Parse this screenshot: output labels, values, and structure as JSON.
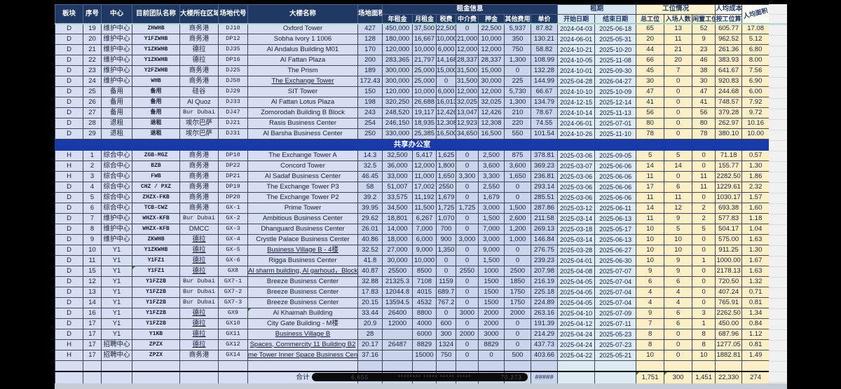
{
  "header": {
    "columns_merged": [
      "板块",
      "序号",
      "中心",
      "目前团队名称",
      "大楼所在区域",
      "场地代号",
      "大楼名称",
      "场地面积"
    ],
    "groups": [
      {
        "label": "租金信息",
        "span": 7
      },
      {
        "label": "租期",
        "span": 2
      },
      {
        "label": "工位情况",
        "span": 3
      },
      {
        "label": "人均成本",
        "span": 1
      }
    ],
    "sub_columns": [
      "年租金",
      "月租金",
      "税费",
      "中介费",
      "押金",
      "其他费用",
      "单价",
      "开始日期",
      "结束日期",
      "总工位",
      "入场人数",
      "闲置工位",
      "按工位算"
    ],
    "diag_column": "人均面积"
  },
  "separator_label": "共享办公室",
  "rows_d": [
    {
      "c": [
        "D",
        "19",
        "维护中心",
        "ZHWHB",
        "商务港",
        "DJ10",
        "Oxford Tower",
        "427",
        "450,000",
        "37,500",
        "22,500",
        "0",
        "22,500",
        "5,937",
        "87.82",
        "2024-04-03",
        "2025-06-18",
        "65",
        "13",
        "52",
        "605.77",
        "17.08"
      ]
    },
    {
      "c": [
        "D",
        "20",
        "维护中心",
        "Y1FZWHB",
        "商务港",
        "DP12",
        "Sobha Ivory 1 1006",
        "128",
        "180,000",
        "16,667",
        "10,000",
        "21,000",
        "10,000",
        "350",
        "130.21",
        "2024-06-01",
        "2025-05-31",
        "20",
        "11",
        "9",
        "962.52",
        "5.12"
      ]
    },
    {
      "c": [
        "D",
        "21",
        "维护中心",
        "Y1ZKWHB",
        "德拉",
        "DJ35",
        "Al Andalus Building M01",
        "170",
        "120,000",
        "10,000",
        "6,000",
        "12,000",
        "12,000",
        "750",
        "58.82",
        "2024-10-21",
        "2025-10-20",
        "44",
        "21",
        "23",
        "261.36",
        "6.80"
      ]
    },
    {
      "c": [
        "D",
        "22",
        "维护中心",
        "Y1ZKWHB",
        "德拉",
        "DP16",
        "Al Fattan Plaza",
        "200",
        "283,365",
        "21,797",
        "14,168",
        "28,337",
        "28,337",
        "1,300",
        "108.99",
        "2024-10-05",
        "2025-11-08",
        "66",
        "20",
        "46",
        "383.93",
        "8.00"
      ]
    },
    {
      "c": [
        "D",
        "23",
        "维护中心",
        "Y2FZWHB",
        "商务港",
        "DJ25",
        "The Prism",
        "189",
        "300,000",
        "25,000",
        "15,000",
        "31,500",
        "15,000",
        "0",
        "132.28",
        "2024-10-01",
        "2025-09-30",
        "45",
        "7",
        "38",
        "641.67",
        "7.56"
      ]
    },
    {
      "c": [
        "D",
        "24",
        "维护中心",
        "WHB",
        "商务港",
        "DJ50",
        "The Exchange Tower",
        "172.43",
        "300,000",
        "25,000",
        "0",
        "31,500",
        "30,000",
        "225",
        "144.99",
        "2025-04-28",
        "2026-04-27",
        "30",
        "0",
        "30",
        "920.83",
        "6.90"
      ],
      "u": [
        6
      ]
    },
    {
      "c": [
        "D",
        "25",
        "备用",
        "备用",
        "硅谷",
        "DJ29",
        "SIT Tower",
        "150",
        "120,000",
        "10,000",
        "6,000",
        "12,000",
        "12,000",
        "5,730",
        "66.67",
        "2024-10-10",
        "2025-10-09",
        "47",
        "0",
        "47",
        "244.68",
        "6.00"
      ]
    },
    {
      "c": [
        "D",
        "26",
        "备用",
        "备用",
        "Al Quoz",
        "DJ33",
        "Al Fattan Lotus Plaza",
        "198",
        "320,250",
        "26,688",
        "16,013",
        "32,025",
        "32,025",
        "1,300",
        "134.79",
        "2024-12-15",
        "2025-12-14",
        "41",
        "0",
        "41",
        "748.57",
        "7.92"
      ]
    },
    {
      "c": [
        "D",
        "27",
        "备用",
        "备用",
        "Bur Dubai",
        "DJ47",
        "Zomorodah Building B Block",
        "243",
        "248,520",
        "19,117",
        "12,426",
        "13,047",
        "12,426",
        "210",
        "78.67",
        "2024-10-14",
        "2025-11-13",
        "56",
        "0",
        "56",
        "379.28",
        "9.72"
      ]
    },
    {
      "c": [
        "D",
        "28",
        "退租",
        "退租",
        "埃尔巴萨",
        "DJ21",
        "Rasis Business Center",
        "254",
        "246,150",
        "18,935",
        "12,308",
        "12,923",
        "12,308",
        "220",
        "74.55",
        "2024-06-01",
        "2025-07-01",
        "80",
        "0",
        "80",
        "262.97",
        "10.16"
      ]
    },
    {
      "c": [
        "D",
        "29",
        "退租",
        "退租",
        "埃尔巴萨",
        "DJ31",
        "Al Barsha Business Center",
        "250",
        "330,000",
        "25,385",
        "16,500",
        "34,650",
        "16,500",
        "550",
        "101.54",
        "2024-10-26",
        "2025-11-10",
        "78",
        "0",
        "78",
        "380.10",
        "10.00"
      ]
    }
  ],
  "rows_h": [
    {
      "c": [
        "H",
        "1",
        "综合中心",
        "ZGB-MGZ",
        "商务港",
        "DP18",
        "The Exchange Tower A",
        "14.3",
        "32,500",
        "5,417",
        "1,625",
        "0",
        "2,500",
        "875",
        "378.81",
        "2025-03-06",
        "2025-09-05",
        "5",
        "5",
        "0",
        "71.18",
        "0.57"
      ]
    },
    {
      "c": [
        "H",
        "2",
        "综合中心",
        "BZB",
        "商务港",
        "DP22",
        "Concord Tower",
        "32.5",
        "36,000",
        "12,000",
        "1,800",
        "0",
        "3,600",
        "3,600",
        "369.23",
        "2025-03-07",
        "2025-06-06",
        "14",
        "14",
        "0",
        "155.77",
        "1.30"
      ]
    },
    {
      "c": [
        "H",
        "3",
        "综合中心",
        "FWB",
        "商务港",
        "DP21",
        "Al Sadaf Business Center",
        "46.45",
        "33,000",
        "11,000",
        "1,650",
        "3,300",
        "3,300",
        "1,650",
        "236.81",
        "2025-03-06",
        "2025-06-06",
        "11",
        "0",
        "11",
        "2282.50",
        "1.86"
      ]
    },
    {
      "c": [
        "D",
        "4",
        "综合中心",
        "CHZ / PXZ",
        "商务港",
        "DP19",
        "The Exchange Tower P3",
        "58",
        "51,007",
        "17,002",
        "2550",
        "0",
        "2,550",
        "0",
        "293.14",
        "2025-03-06",
        "2025-06-06",
        "17",
        "6",
        "11",
        "1229.61",
        "2.32"
      ]
    },
    {
      "c": [
        "D",
        "5",
        "综合中心",
        "ZHZX-FKB",
        "商务港",
        "DP20",
        "The Exchange Tower P2",
        "39.2",
        "33,575",
        "11,192",
        "1,679",
        "0",
        "1,679",
        "0",
        "285.51",
        "2025-03-06",
        "2025-06-06",
        "11",
        "11",
        "0",
        "1030.17",
        "1.57"
      ]
    },
    {
      "c": [
        "D",
        "6",
        "综合中心",
        "TCB-CWZ",
        "商务港",
        "GX-1",
        "Prime Tower",
        "39.95",
        "34,500",
        "11,500",
        "1,725",
        "1,725",
        "3,000",
        "1,500",
        "287.86",
        "2025-03-12",
        "2025-06-11",
        "14",
        "12",
        "2",
        "693.38",
        "1.60"
      ]
    },
    {
      "c": [
        "D",
        "7",
        "维护中心",
        "WHZX-KFB",
        "Bur Dubai",
        "GX-2",
        "Ambitious Business Center",
        "29.62",
        "18,801",
        "6,267",
        "1,070",
        "0",
        "1,500",
        "2,600",
        "211.58",
        "2025-03-14",
        "2025-06-13",
        "11",
        "9",
        "2",
        "577.83",
        "1.18"
      ]
    },
    {
      "c": [
        "D",
        "8",
        "维护中心",
        "WHZX-KFB",
        "DMCC",
        "GX-3",
        "Dhanguard Business Center",
        "26.01",
        "14,000",
        "7,000",
        "700",
        "0",
        "7,000",
        "1,200",
        "269.13",
        "2025-03-18",
        "2025-05-17",
        "10",
        "5",
        "5",
        "504.17",
        "1.04"
      ]
    },
    {
      "c": [
        "D",
        "9",
        "维护中心",
        "ZKWHB",
        "德拉",
        "GX-4",
        "Crystle Palace Business Center",
        "40.86",
        "18,000",
        "6,000",
        "900",
        "3,000",
        "3,000",
        "1,000",
        "146.84",
        "2025-03-14",
        "2025-06-13",
        "10",
        "10",
        "0",
        "575.00",
        "1.63"
      ],
      "u": [
        4
      ]
    },
    {
      "c": [
        "D",
        "10",
        "Y1",
        "Y1ZKWHB",
        "德拉",
        "GX-5",
        "Business Village B - 4楼",
        "32.52",
        "27,000",
        "9,000",
        "1,350",
        "0",
        "9,000",
        "0",
        "276.75",
        "2025-03-28",
        "2025-06-27",
        "10",
        "10",
        "0",
        "911.25",
        "1.30"
      ],
      "u": [
        4,
        6
      ]
    },
    {
      "c": [
        "D",
        "11",
        "Y1",
        "Y1FZ1",
        "德拉",
        "GX-6",
        "Rigga Business Center",
        "41.8",
        "30,000",
        "10,000",
        "0",
        "0",
        "1,500",
        "0",
        "239.23",
        "2025-04-01",
        "2025-06-30",
        "10",
        "9",
        "1",
        "1000.00",
        "1.67"
      ],
      "u": [
        4
      ]
    },
    {
      "c": [
        "D",
        "15",
        "Y1",
        "Y1FZ1",
        "德拉",
        "GX8",
        "Al sharm building, Al garhoud，Block",
        "40.87",
        "25500",
        "8500",
        "0",
        "2550",
        "1000",
        "2500",
        "207.98",
        "2025-04-08",
        "2025-07-07",
        "9",
        "9",
        "0",
        "2178.13",
        "1.63"
      ],
      "u": [
        4,
        6
      ],
      "t": [
        3
      ]
    },
    {
      "c": [
        "D",
        "12",
        "Y1",
        "Y1FZ2B",
        "Bur Dubai",
        "GX7-1",
        "Breeze Business Center",
        "32.88",
        "21325.3",
        "7108",
        "1159",
        "0",
        "1500",
        "1850",
        "216.19",
        "2025-04-05",
        "2025-07-04",
        "6",
        "6",
        "0",
        "720.50",
        "1.32"
      ]
    },
    {
      "c": [
        "D",
        "13",
        "Y1",
        "Y1FZ2B",
        "Bur Dubai",
        "GX7-2",
        "Breeze Business Center",
        "17.83",
        "12044.8",
        "4015",
        "689.7",
        "0",
        "1500",
        "1750",
        "225.18",
        "2025-04-05",
        "2025-07-04",
        "4",
        "4",
        "0",
        "407.24",
        "0.71"
      ]
    },
    {
      "c": [
        "D",
        "14",
        "Y1",
        "Y1FZ2B",
        "Bur Dubai",
        "GX7-3",
        "Breeze Business Center",
        "20.15",
        "13594.5",
        "4532",
        "767.2",
        "0",
        "1500",
        "1750",
        "224.89",
        "2025-04-05",
        "2025-07-04",
        "4",
        "4",
        "0",
        "765.91",
        "0.81"
      ]
    },
    {
      "c": [
        "D",
        "16",
        "Y1",
        "Y1FZ2B",
        "德拉",
        "GX9",
        "Al Khaimah Building",
        "33.44",
        "26400",
        "8800",
        "0",
        "3000",
        "2000",
        "2000",
        "263.16",
        "2025-04-10",
        "2025-07-09",
        "9",
        "6",
        "3",
        "2262.50",
        "1.34"
      ],
      "u": [
        4
      ],
      "t": [
        6
      ]
    },
    {
      "c": [
        "D",
        "17",
        "Y1",
        "Y1FZ2B",
        "德拉",
        "GX10",
        "City Gate Building - M楼",
        "20.9",
        "12000",
        "4000",
        "600",
        "0",
        "2000",
        "0",
        "191.39",
        "2025-04-12",
        "2025-07-11",
        "7",
        "6",
        "1",
        "450.00",
        "0.84"
      ],
      "u": [
        4
      ]
    },
    {
      "c": [
        "D",
        "17",
        "Y1",
        "Y1KB",
        "德拉",
        "GX11",
        "Business Village B",
        "28",
        "",
        "6000",
        "300",
        "2000",
        "3000",
        "0",
        "214.29",
        "2025-04-24",
        "2025-05-23",
        "8",
        "0",
        "8",
        "687.96",
        "1.12"
      ],
      "u": [
        4,
        6
      ]
    },
    {
      "c": [
        "H",
        "17",
        "招聘中心",
        "ZPZX",
        "德拉",
        "GX12",
        "Spaces, Commercity 11 Building B2",
        "20.17",
        "26487",
        "8829",
        "1324",
        "0",
        "8829",
        "0",
        "437.73",
        "2025-04-24",
        "2025-07-23",
        "8",
        "0",
        "8",
        "1277.05",
        "0.81"
      ],
      "u": [
        4,
        6
      ]
    },
    {
      "c": [
        "H",
        "17",
        "招聘中心",
        "ZPZX",
        "商务港",
        "GX14",
        "me Tower Inner Space Business Cen",
        "37.16",
        "",
        "15000",
        "750",
        "0",
        "0",
        "500",
        "403.66",
        "2025-04-22",
        "2025-05-21",
        "10",
        "0",
        "10",
        "1882.81",
        "1.49"
      ],
      "u": [
        6
      ]
    }
  ],
  "totals": {
    "label": "合计",
    "c": [
      "",
      "",
      "",
      "",
      "",
      "",
      "合计",
      "6,655",
      "",
      "",
      "",
      "",
      "",
      "70,273",
      "#####",
      "",
      "",
      "1,751",
      "300",
      "1,451",
      "22,330",
      "274"
    ],
    "t": [
      17,
      18
    ]
  },
  "redaction_marks": "********  *****  *****  *****",
  "colors": {
    "header_navy": "#1f3864",
    "separator_blue": "#1839a8",
    "cell_blue": "#d5def2",
    "cell_lavender": "#cbd4ed",
    "cell_date": "#ddeaf4",
    "cell_yellow": "#fcefc8",
    "freeze_line_teal": "#a8dbc9",
    "redaction_black": "#0a0a0a"
  }
}
